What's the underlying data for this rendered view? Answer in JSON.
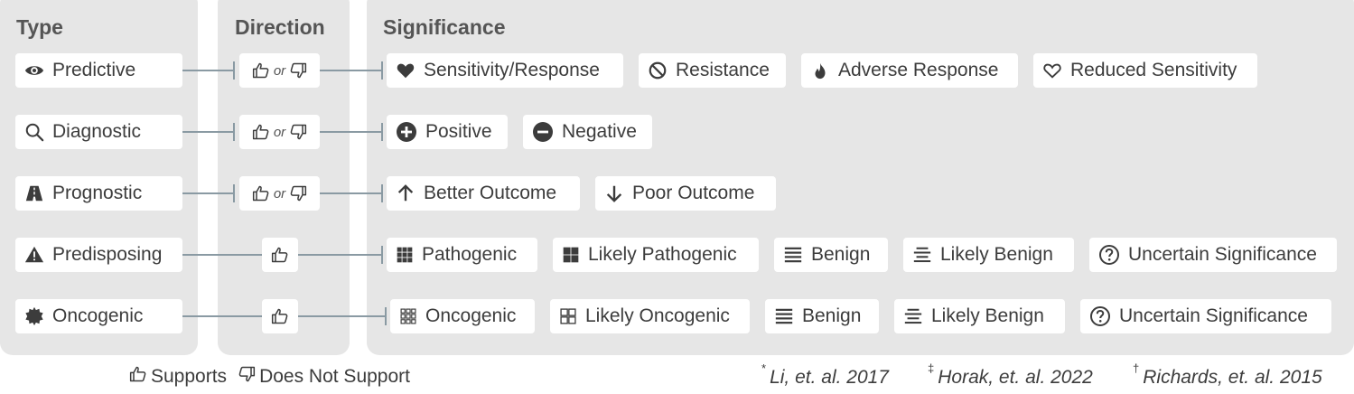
{
  "columns": {
    "type": "Type",
    "direction": "Direction",
    "significance": "Significance"
  },
  "rows": [
    {
      "type": {
        "label": "Predictive",
        "icon": "eye-icon"
      },
      "direction": {
        "mode": "both",
        "or_label": "or"
      },
      "significance": [
        {
          "label": "Sensitivity/Response",
          "icon": "heart-solid-icon"
        },
        {
          "label": "Resistance",
          "icon": "prohibited-icon"
        },
        {
          "label": "Adverse Response",
          "icon": "flame-icon"
        },
        {
          "label": "Reduced Sensitivity",
          "icon": "heart-outline-icon"
        }
      ]
    },
    {
      "type": {
        "label": "Diagnostic",
        "icon": "magnifier-icon"
      },
      "direction": {
        "mode": "both",
        "or_label": "or"
      },
      "significance": [
        {
          "label": "Positive",
          "icon": "plus-circle-icon"
        },
        {
          "label": "Negative",
          "icon": "minus-circle-icon"
        }
      ]
    },
    {
      "type": {
        "label": "Prognostic",
        "icon": "road-icon"
      },
      "direction": {
        "mode": "both",
        "or_label": "or"
      },
      "significance": [
        {
          "label": "Better Outcome",
          "icon": "arrow-up-icon"
        },
        {
          "label": "Poor Outcome",
          "icon": "arrow-down-icon"
        }
      ]
    },
    {
      "type": {
        "label": "Predisposing",
        "icon": "warning-icon"
      },
      "direction": {
        "mode": "supports"
      },
      "significance": [
        {
          "label": "Pathogenic",
          "icon": "grid-nine-icon"
        },
        {
          "label": "Likely Pathogenic",
          "icon": "grid-four-icon"
        },
        {
          "label": "Benign",
          "icon": "lines-icon"
        },
        {
          "label": "Likely Benign",
          "icon": "lines-centered-icon"
        },
        {
          "label": "Uncertain Significance",
          "icon": "question-circle-icon"
        }
      ]
    },
    {
      "type": {
        "label": "Oncogenic",
        "icon": "cell-icon"
      },
      "direction": {
        "mode": "supports"
      },
      "significance": [
        {
          "label": "Oncogenic",
          "icon": "grid-nine-outline-icon"
        },
        {
          "label": "Likely Oncogenic",
          "icon": "grid-four-outline-icon"
        },
        {
          "label": "Benign",
          "icon": "lines-icon"
        },
        {
          "label": "Likely Benign",
          "icon": "lines-centered-icon"
        },
        {
          "label": "Uncertain Significance",
          "icon": "question-circle-icon"
        }
      ]
    }
  ],
  "legend": {
    "supports": "Supports",
    "does_not_support": "Does Not Support"
  },
  "citations": [
    {
      "mark": "*",
      "text": "Li, et. al. 2017"
    },
    {
      "mark": "‡",
      "text": "Horak, et. al. 2022"
    },
    {
      "mark": "†",
      "text": "Richards, et. al. 2015"
    }
  ],
  "colors": {
    "panel": "#e6e6e6",
    "chip": "#ffffff",
    "connector": "#8a9aa3",
    "text": "#3c3c3c"
  }
}
